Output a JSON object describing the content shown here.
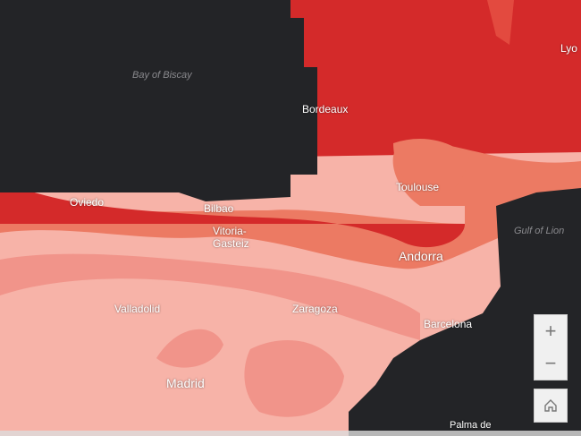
{
  "map": {
    "colors": {
      "water": "#232427",
      "dark_red": "#d42a2a",
      "red": "#e34a3f",
      "orange": "#ec7a63",
      "salmon": "#f1948a",
      "pink": "#f7b3a8",
      "light": "#fbd0c4"
    },
    "water_labels": [
      {
        "text": "Bay of Biscay"
      },
      {
        "text": "Gulf of Lion"
      }
    ],
    "place_labels": [
      {
        "text": "Lyo"
      },
      {
        "text": "Bordeaux"
      },
      {
        "text": "Toulouse"
      },
      {
        "text": "Oviedo"
      },
      {
        "text": "Bilbao"
      },
      {
        "text": "Vitoria-\nGasteiz"
      },
      {
        "text": "Andorra"
      },
      {
        "text": "Valladolid"
      },
      {
        "text": "Zaragoza"
      },
      {
        "text": "Barcelona"
      },
      {
        "text": "Madrid"
      },
      {
        "text": "Palma de"
      }
    ]
  },
  "controls": {
    "zoom_in": "+",
    "zoom_out": "−",
    "home_icon": "home-icon"
  }
}
